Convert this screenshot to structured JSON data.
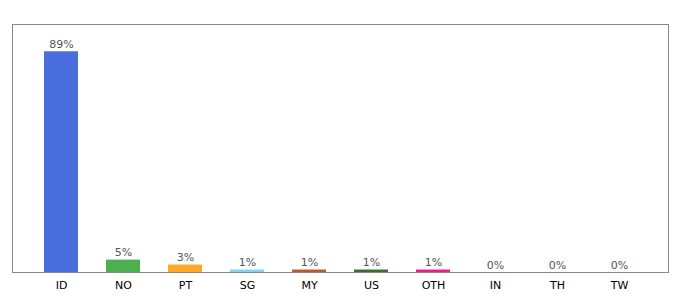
{
  "chart_data": {
    "type": "bar",
    "categories": [
      "ID",
      "NO",
      "PT",
      "SG",
      "MY",
      "US",
      "OTH",
      "IN",
      "TH",
      "TW"
    ],
    "values": [
      89,
      5,
      3,
      1,
      1,
      1,
      1,
      0,
      0,
      0
    ],
    "value_labels": [
      "89%",
      "5%",
      "3%",
      "1%",
      "1%",
      "1%",
      "1%",
      "0%",
      "0%",
      "0%"
    ],
    "colors": [
      "#4a6fdc",
      "#4caf50",
      "#ffa726",
      "#80d4f5",
      "#b85c2c",
      "#3a6e30",
      "#e91e8c",
      "#aaaaaa",
      "#aaaaaa",
      "#aaaaaa"
    ],
    "ylim": [
      0,
      100
    ],
    "data_labels": true,
    "tick_labels": "x"
  }
}
